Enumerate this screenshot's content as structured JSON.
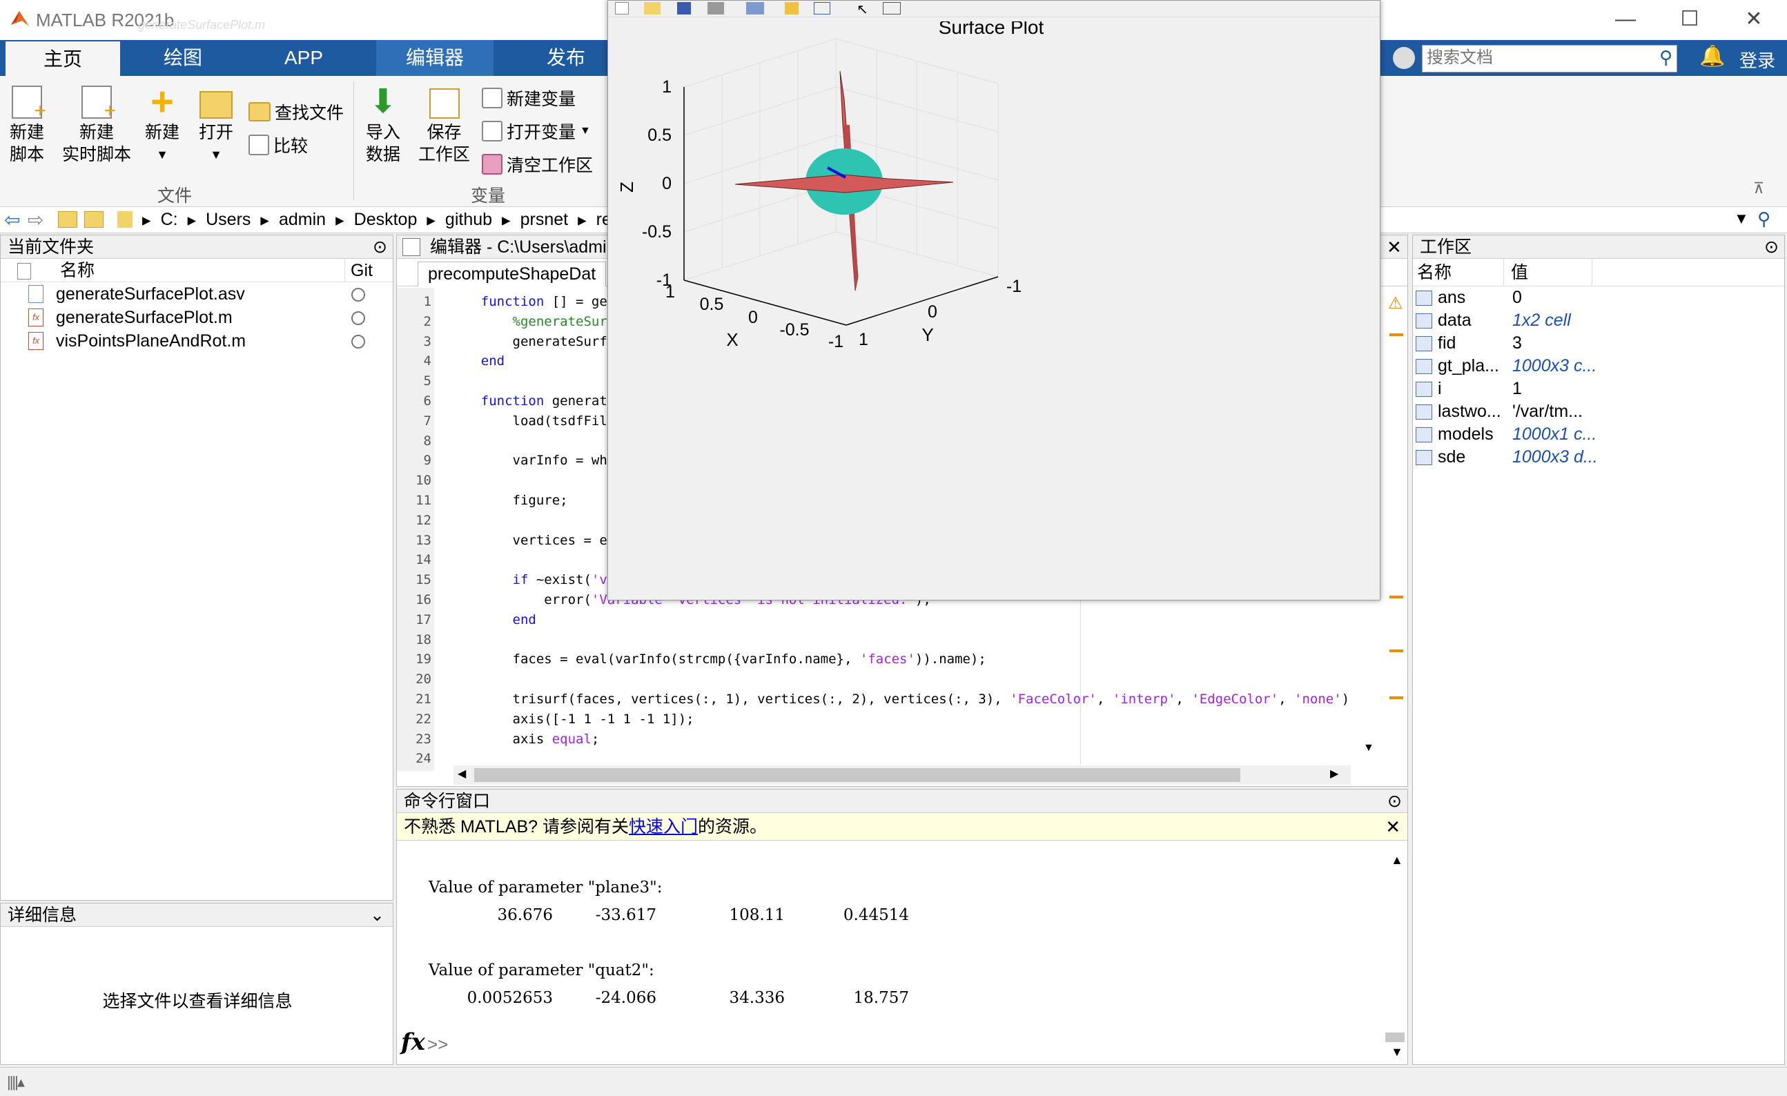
{
  "app": {
    "title": "MATLAB R2021b",
    "ghost_title": "generateSurfacePlot.m"
  },
  "window_controls": {
    "minimize": "—",
    "maximize": "☐",
    "close": "✕"
  },
  "tabs": [
    "主页",
    "绘图",
    "APP",
    "编辑器",
    "发布"
  ],
  "search": {
    "placeholder": "搜索文档",
    "login": "登录"
  },
  "ribbon": {
    "new_script": [
      "新建",
      "脚本"
    ],
    "new_live_script": [
      "新建",
      "实时脚本"
    ],
    "new": "新建",
    "open": "打开",
    "find_files": "查找文件",
    "compare": "比较",
    "import_data": [
      "导入",
      "数据"
    ],
    "save_workspace": [
      "保存",
      "工作区"
    ],
    "new_variable": "新建变量",
    "open_variable": "打开变量",
    "clear_workspace": "清空工作区",
    "group_file": "文件",
    "group_variable": "变量"
  },
  "address": [
    "C:",
    "Users",
    "admin",
    "Desktop",
    "github",
    "prsnet",
    "re"
  ],
  "current_folder": {
    "title": "当前文件夹",
    "col_name": "名称",
    "col_git": "Git",
    "files": [
      "generateSurfacePlot.asv",
      "generateSurfacePlot.m",
      "visPointsPlaneAndRot.m"
    ]
  },
  "details": {
    "title": "详细信息",
    "hint": "选择文件以查看详细信息"
  },
  "editor": {
    "title": "编辑器 - C:\\Users\\admi",
    "tab": "precomputeShapeDat",
    "line_numbers": [
      "1",
      "2",
      "3",
      "4",
      "5",
      "6",
      "7",
      "8",
      "9",
      "10",
      "11",
      "12",
      "13",
      "14",
      "15",
      "16",
      "17",
      "18",
      "19",
      "20",
      "21",
      "22",
      "23",
      "24"
    ],
    "lines": {
      "l1a": "    function",
      "l1b": " [] = gen",
      "l2": "        %generateSurf",
      "l3": "        generateSurfa",
      "l4": "    end",
      "l6a": "    function",
      "l6b": " generate",
      "l7": "        load(tsdfFile",
      "l9": "        varInfo = who",
      "l11": "        figure;",
      "l13": "        vertices = ev",
      "l15a": "        if",
      "l15b": " ~exist(",
      "l15c": "'ve",
      "l16a": "            error(",
      "l16b": "'Variable 'vertices' is not initialized.'",
      "l16c": ");",
      "l17": "        end",
      "l19a": "        faces = eval(varInfo(strcmp({varInfo.name}, ",
      "l19b": "'faces'",
      "l19c": ")).name);",
      "l21a": "        trisurf(faces, vertices(:, 1), vertices(:, 2), vertices(:, 3), ",
      "l21b": "'FaceColor'",
      "l21c": ", ",
      "l21d": "'interp'",
      "l21e": ", ",
      "l21f": "'EdgeColor'",
      "l21g": ", ",
      "l21h": "'none'",
      "l21i": ")",
      "l22": "        axis([-1 1 -1 1 -1 1]);",
      "l23a": "        axis ",
      "l23b": "equal",
      "l23c": ";"
    }
  },
  "command_window": {
    "title": "命令行窗口",
    "banner_pre": "不熟悉 MATLAB? 请参阅有关",
    "banner_link": "快速入门",
    "banner_post": "的资源。",
    "out1_label": "Value of parameter \"plane3\":",
    "out1_values": [
      "36.676",
      "-33.617",
      "108.11",
      "0.44514"
    ],
    "out2_label": "Value of parameter \"quat2\":",
    "out2_values": [
      "0.0052653",
      "-24.066",
      "34.336",
      "18.757"
    ],
    "prompt": ">>"
  },
  "workspace": {
    "title": "工作区",
    "col_name": "名称",
    "col_value": "值",
    "rows": [
      {
        "name": "ans",
        "value": "0",
        "italic": false
      },
      {
        "name": "data",
        "value": "1x2 cell",
        "italic": true
      },
      {
        "name": "fid",
        "value": "3",
        "italic": false
      },
      {
        "name": "gt_pla...",
        "value": "1000x3 c...",
        "italic": true
      },
      {
        "name": "i",
        "value": "1",
        "italic": false
      },
      {
        "name": "lastwo...",
        "value": "'/var/tm...",
        "italic": false
      },
      {
        "name": "models",
        "value": "1000x1 c...",
        "italic": true
      },
      {
        "name": "sde",
        "value": "1000x3 d...",
        "italic": true
      }
    ]
  },
  "figure": {
    "title": "Surface Plot",
    "zlabel": "Z",
    "xlabel": "X",
    "ylabel": "Y",
    "z_ticks": [
      "1",
      "0.5",
      "0",
      "-0.5",
      "-1"
    ],
    "x_ticks": [
      "1",
      "0.5",
      "0",
      "-0.5",
      "-1"
    ],
    "y_ticks": [
      "1",
      "0",
      "-1"
    ]
  },
  "colors": {
    "accent": "#1e5aa0",
    "surface": "#2fc3b1",
    "plane": "#d35a5a"
  }
}
